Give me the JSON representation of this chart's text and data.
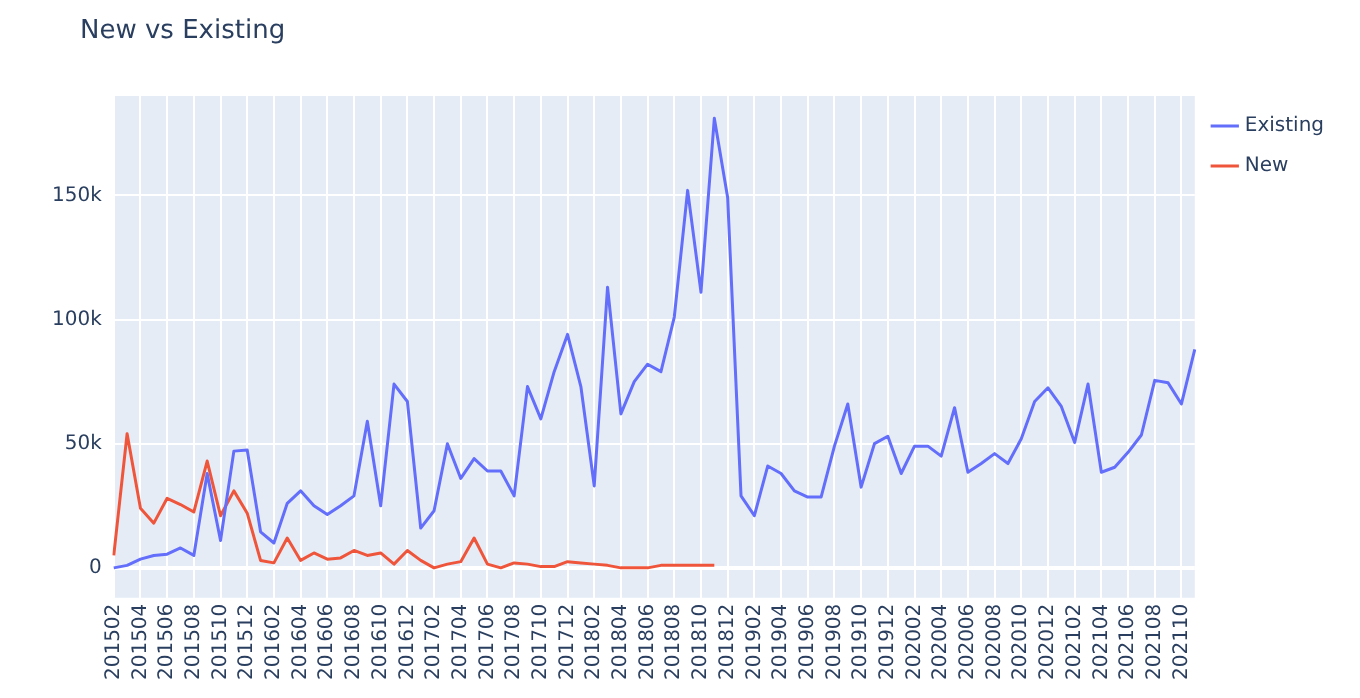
{
  "chart_data": {
    "type": "line",
    "title": "New vs Existing",
    "categories": [
      "201502",
      null,
      "201504",
      null,
      "201506",
      null,
      "201508",
      null,
      "201510",
      null,
      "201512",
      null,
      "201602",
      null,
      "201604",
      null,
      "201606",
      null,
      "201608",
      null,
      "201610",
      null,
      "201612",
      null,
      "201702",
      null,
      "201704",
      null,
      "201706",
      null,
      "201708",
      null,
      "201710",
      null,
      "201712",
      null,
      "201802",
      null,
      "201804",
      null,
      "201806",
      null,
      "201808",
      null,
      "201810",
      null,
      "201812",
      null,
      "201902",
      null,
      "201904",
      null,
      "201906",
      null,
      "201908",
      null,
      "201910",
      null,
      "201912",
      null,
      "202002",
      null,
      "202004",
      null,
      "202006",
      null,
      "202008",
      null,
      "202010",
      null,
      "202012",
      null,
      "202102",
      null,
      "202104",
      null,
      "202106",
      null,
      "202108",
      null,
      "202110",
      null
    ],
    "series": [
      {
        "name": "Existing",
        "color": "#636efa",
        "values": [
          0,
          1000,
          3500,
          5000,
          5500,
          8000,
          5000,
          38000,
          11000,
          47000,
          47500,
          14500,
          10000,
          26000,
          31000,
          25000,
          21500,
          25000,
          29000,
          59000,
          25000,
          74000,
          67000,
          16000,
          23000,
          50000,
          36000,
          44000,
          39000,
          39000,
          29000,
          73000,
          60000,
          79000,
          94000,
          73000,
          33000,
          113000,
          62000,
          75000,
          82000,
          79000,
          101000,
          152000,
          111000,
          181000,
          149000,
          29000,
          21000,
          41000,
          38000,
          31000,
          28500,
          28500,
          49000,
          66000,
          32500,
          50000,
          53000,
          38000,
          49000,
          49000,
          45000,
          64500,
          38500,
          42000,
          46000,
          42000,
          52000,
          67000,
          72500,
          65000,
          50500,
          74000,
          38500,
          40500,
          46500,
          53500,
          75500,
          74500,
          66000,
          88000
        ]
      },
      {
        "name": "New",
        "color": "#ef553b",
        "values": [
          5000,
          54000,
          24000,
          18000,
          28000,
          25500,
          22500,
          43000,
          21000,
          31000,
          22000,
          3000,
          2000,
          12000,
          3000,
          6000,
          3500,
          4000,
          7000,
          5000,
          6000,
          1500,
          7000,
          3000,
          0,
          1500,
          2500,
          12000,
          1500,
          0,
          2000,
          1500,
          500,
          500,
          2500,
          2000,
          1500,
          1000,
          0,
          0,
          0,
          1000,
          1000,
          1000,
          1000,
          1000,
          null,
          null,
          null,
          null,
          null,
          null,
          null,
          null,
          null,
          null,
          null,
          null,
          null,
          null,
          null,
          null,
          null,
          null,
          null,
          null,
          null,
          null,
          null,
          null,
          null,
          null,
          null,
          null,
          null,
          null,
          null,
          null,
          null,
          null,
          null,
          null
        ]
      }
    ],
    "ylim": [
      -12000,
      190000
    ],
    "yticks": [
      0,
      {
        "value": 50000,
        "label": "50k"
      },
      {
        "value": 100000,
        "label": "100k"
      },
      {
        "value": 150000,
        "label": "150k"
      }
    ],
    "grid": true,
    "legend": "top right",
    "marker": "none",
    "line_style": "solid"
  }
}
